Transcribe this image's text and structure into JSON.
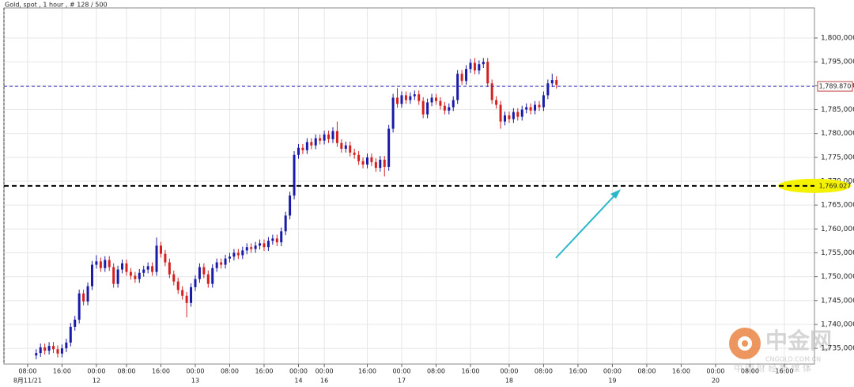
{
  "chart_data": {
    "type": "candlestick",
    "title": "Gold, spot , 1 hour , # 128 / 500",
    "up_color": "#1a1aa8",
    "down_color": "#d42020",
    "grid": true,
    "xlim": [
      -5.5,
      183
    ],
    "ylim": [
      1731.7,
      1806.3
    ],
    "yticks": [
      {
        "value": 1735,
        "label": "1,735,000"
      },
      {
        "value": 1740,
        "label": "1,740,000"
      },
      {
        "value": 1745,
        "label": "1,745,000"
      },
      {
        "value": 1750,
        "label": "1,750,000"
      },
      {
        "value": 1755,
        "label": "1,755,000"
      },
      {
        "value": 1760,
        "label": "1,760,000"
      },
      {
        "value": 1765,
        "label": "1,765,000"
      },
      {
        "value": 1770,
        "label": "1,770,000"
      },
      {
        "value": 1775,
        "label": "1,775,000"
      },
      {
        "value": 1780,
        "label": "1,780,000"
      },
      {
        "value": 1785,
        "label": "1,785,000"
      },
      {
        "value": 1790,
        "label": "1,790,000"
      },
      {
        "value": 1795,
        "label": "1,795,000"
      },
      {
        "value": 1800,
        "label": "1,800,000"
      }
    ],
    "xticks": [
      {
        "value": 0,
        "label": "08:00"
      },
      {
        "value": 8,
        "label": "16:00"
      },
      {
        "value": 16,
        "label": "00:00"
      },
      {
        "value": 23,
        "label": "08:00"
      },
      {
        "value": 31,
        "label": "16:00"
      },
      {
        "value": 39,
        "label": "00:00"
      },
      {
        "value": 47,
        "label": "08:00"
      },
      {
        "value": 55,
        "label": "16:00"
      },
      {
        "value": 63,
        "label": "00:00"
      },
      {
        "value": 69,
        "label": "00:00"
      },
      {
        "value": 79,
        "label": "16:00"
      },
      {
        "value": 87,
        "label": "00:00"
      },
      {
        "value": 95,
        "label": "08:00"
      },
      {
        "value": 103,
        "label": "16:00"
      },
      {
        "value": 112,
        "label": "00:00"
      },
      {
        "value": 120,
        "label": "08:00"
      },
      {
        "value": 128,
        "label": "16:00"
      },
      {
        "value": 136,
        "label": "00:00"
      },
      {
        "value": 144,
        "label": "08:00"
      },
      {
        "value": 152,
        "label": "16:00"
      },
      {
        "value": 160,
        "label": "00:00"
      },
      {
        "value": 168,
        "label": "08:00"
      },
      {
        "value": 176,
        "label": "16:00"
      }
    ],
    "date_labels": [
      {
        "value": 0,
        "label": "8月11/21"
      },
      {
        "value": 16,
        "label": "12"
      },
      {
        "value": 39,
        "label": "13"
      },
      {
        "value": 63,
        "label": "14"
      },
      {
        "value": 69,
        "label": "16"
      },
      {
        "value": 87,
        "label": "17"
      },
      {
        "value": 112,
        "label": "18"
      },
      {
        "value": 136,
        "label": "19"
      },
      {
        "value": 160,
        "label": "20"
      }
    ],
    "price_lines": [
      {
        "value": 1789.87,
        "label": "1,789.870",
        "color": "#3030c0",
        "highlight": false
      },
      {
        "value": 1769.027,
        "label": "1,769.027",
        "color": "#000000",
        "highlight": true
      }
    ],
    "candles": {
      "x": [
        2,
        3,
        4,
        5,
        6,
        7,
        8,
        9,
        10,
        11,
        12,
        13,
        14,
        15,
        16,
        17,
        18,
        19,
        20,
        21,
        22,
        23,
        24,
        25,
        26,
        27,
        28,
        29,
        30,
        31,
        32,
        33,
        34,
        35,
        36,
        37,
        38,
        39,
        40,
        41,
        42,
        43,
        44,
        45,
        46,
        47,
        48,
        49,
        50,
        51,
        52,
        53,
        54,
        55,
        56,
        57,
        58,
        59,
        60,
        61,
        62,
        63,
        64,
        65,
        66,
        67,
        68,
        69,
        70,
        71,
        72,
        73,
        74,
        75,
        76,
        77,
        78,
        79,
        80,
        81,
        82,
        83,
        84,
        85,
        86,
        87,
        88,
        89,
        90,
        91,
        92,
        93,
        94,
        95,
        96,
        97,
        98,
        99,
        100,
        101,
        102,
        103,
        104,
        105,
        106,
        107,
        108,
        109,
        110,
        111,
        112,
        113,
        114,
        115,
        116,
        117,
        118,
        119,
        120,
        121,
        122,
        123
      ],
      "open": [
        1733.5,
        1734.0,
        1735.2,
        1734.5,
        1735.5,
        1734.8,
        1733.9,
        1735.0,
        1736.2,
        1739.5,
        1741.0,
        1746.5,
        1744.8,
        1748.0,
        1752.5,
        1753.2,
        1751.8,
        1753.5,
        1752.0,
        1748.5,
        1751.5,
        1752.8,
        1751.0,
        1750.2,
        1749.5,
        1750.8,
        1751.5,
        1752.2,
        1751.0,
        1756.5,
        1754.8,
        1753.0,
        1750.5,
        1749.0,
        1747.2,
        1746.0,
        1744.5,
        1747.8,
        1749.5,
        1752.0,
        1750.5,
        1748.5,
        1751.8,
        1753.0,
        1752.5,
        1753.8,
        1754.2,
        1755.0,
        1754.5,
        1755.5,
        1756.2,
        1755.8,
        1756.5,
        1757.0,
        1756.2,
        1757.5,
        1758.0,
        1757.2,
        1759.5,
        1762.8,
        1767.0,
        1775.5,
        1777.0,
        1776.5,
        1778.2,
        1777.5,
        1779.0,
        1778.5,
        1779.8,
        1778.8,
        1780.5,
        1778.0,
        1776.8,
        1777.5,
        1776.0,
        1775.5,
        1774.2,
        1773.5,
        1775.0,
        1774.0,
        1772.8,
        1774.5,
        1773.0,
        1781.0,
        1787.5,
        1786.2,
        1788.0,
        1787.0,
        1787.8,
        1788.2,
        1786.8,
        1784.0,
        1786.5,
        1787.5,
        1786.8,
        1785.8,
        1784.8,
        1785.5,
        1787.0,
        1792.5,
        1791.0,
        1793.5,
        1794.8,
        1793.2,
        1794.5,
        1795.0,
        1790.5,
        1787.0,
        1786.0,
        1782.5,
        1783.8,
        1783.0,
        1784.5,
        1783.5,
        1785.0,
        1785.5,
        1784.8,
        1786.0,
        1785.5,
        1788.0,
        1790.5,
        1791.2
      ],
      "high": [
        1734.8,
        1736.0,
        1736.0,
        1736.3,
        1736.3,
        1735.6,
        1735.8,
        1737.0,
        1740.3,
        1741.8,
        1747.3,
        1747.3,
        1748.8,
        1753.3,
        1754.5,
        1754.0,
        1754.3,
        1754.3,
        1752.8,
        1752.3,
        1753.6,
        1753.6,
        1751.8,
        1751.0,
        1751.6,
        1752.3,
        1753.0,
        1753.0,
        1758.2,
        1757.3,
        1755.6,
        1753.8,
        1751.3,
        1749.8,
        1748.0,
        1746.8,
        1748.6,
        1750.3,
        1752.8,
        1752.8,
        1751.3,
        1752.6,
        1753.8,
        1753.8,
        1754.6,
        1755.0,
        1755.8,
        1755.8,
        1756.3,
        1757.0,
        1757.0,
        1757.3,
        1757.8,
        1757.8,
        1758.3,
        1758.8,
        1758.8,
        1760.3,
        1763.6,
        1767.8,
        1776.3,
        1777.8,
        1777.8,
        1779.0,
        1779.0,
        1779.8,
        1779.8,
        1780.6,
        1780.6,
        1781.3,
        1782.5,
        1778.8,
        1778.3,
        1778.3,
        1776.8,
        1776.3,
        1775.0,
        1775.8,
        1775.8,
        1774.8,
        1775.3,
        1775.3,
        1781.8,
        1788.3,
        1789.5,
        1788.8,
        1788.8,
        1788.6,
        1789.0,
        1789.0,
        1787.6,
        1787.3,
        1788.3,
        1788.3,
        1787.6,
        1786.6,
        1786.3,
        1787.8,
        1793.3,
        1793.3,
        1794.3,
        1795.6,
        1795.8,
        1795.3,
        1795.8,
        1795.8,
        1791.3,
        1787.8,
        1786.8,
        1784.6,
        1784.6,
        1785.3,
        1785.3,
        1785.8,
        1786.3,
        1786.3,
        1786.8,
        1786.8,
        1788.8,
        1791.3,
        1792.5,
        1792.0
      ],
      "low": [
        1732.7,
        1733.2,
        1733.7,
        1733.7,
        1734.0,
        1733.1,
        1733.1,
        1734.2,
        1735.4,
        1738.7,
        1740.2,
        1744.0,
        1744.0,
        1747.2,
        1751.7,
        1751.0,
        1751.0,
        1751.2,
        1747.7,
        1747.7,
        1750.7,
        1750.2,
        1749.4,
        1748.7,
        1748.7,
        1750.0,
        1750.7,
        1750.2,
        1750.2,
        1754.0,
        1752.2,
        1749.7,
        1748.2,
        1746.4,
        1745.2,
        1741.5,
        1743.7,
        1747.0,
        1748.7,
        1749.7,
        1747.7,
        1747.7,
        1751.0,
        1751.7,
        1751.7,
        1753.0,
        1753.4,
        1753.7,
        1753.7,
        1754.7,
        1755.0,
        1755.0,
        1755.7,
        1755.4,
        1755.4,
        1756.7,
        1756.4,
        1756.4,
        1758.7,
        1762.0,
        1766.2,
        1774.7,
        1775.7,
        1775.7,
        1776.7,
        1776.7,
        1777.7,
        1777.7,
        1778.0,
        1778.0,
        1777.2,
        1776.0,
        1776.0,
        1775.2,
        1774.7,
        1773.4,
        1772.7,
        1772.7,
        1773.2,
        1772.0,
        1772.0,
        1771.0,
        1772.2,
        1780.2,
        1785.4,
        1785.4,
        1786.2,
        1786.2,
        1787.0,
        1786.0,
        1783.2,
        1783.2,
        1785.7,
        1786.0,
        1785.0,
        1784.0,
        1784.0,
        1784.7,
        1786.2,
        1790.2,
        1790.2,
        1792.7,
        1792.4,
        1792.4,
        1793.7,
        1789.7,
        1786.2,
        1785.2,
        1781.0,
        1781.7,
        1782.2,
        1782.2,
        1782.7,
        1782.7,
        1784.2,
        1784.0,
        1784.0,
        1784.7,
        1784.7,
        1787.2,
        1789.7,
        1789.4
      ],
      "close": [
        1734.0,
        1735.2,
        1734.5,
        1735.5,
        1734.8,
        1733.9,
        1735.0,
        1736.2,
        1739.5,
        1741.0,
        1746.5,
        1744.8,
        1748.0,
        1752.5,
        1753.2,
        1751.8,
        1753.5,
        1752.0,
        1748.5,
        1751.5,
        1752.8,
        1751.0,
        1750.2,
        1749.5,
        1750.8,
        1751.5,
        1752.2,
        1751.0,
        1756.5,
        1754.8,
        1753.0,
        1750.5,
        1749.0,
        1747.2,
        1746.0,
        1744.5,
        1747.8,
        1749.5,
        1752.0,
        1750.5,
        1748.5,
        1751.8,
        1753.0,
        1752.5,
        1753.8,
        1754.2,
        1755.0,
        1754.5,
        1755.5,
        1756.2,
        1755.8,
        1756.5,
        1757.0,
        1756.2,
        1757.5,
        1758.0,
        1757.2,
        1759.5,
        1762.8,
        1767.0,
        1775.5,
        1777.0,
        1776.5,
        1778.2,
        1777.5,
        1779.0,
        1778.5,
        1779.8,
        1778.8,
        1780.5,
        1778.0,
        1776.8,
        1777.5,
        1776.0,
        1775.5,
        1774.2,
        1773.5,
        1775.0,
        1774.0,
        1772.8,
        1774.5,
        1773.0,
        1781.0,
        1787.5,
        1786.2,
        1788.0,
        1787.0,
        1787.8,
        1788.2,
        1786.8,
        1784.0,
        1786.5,
        1787.5,
        1786.8,
        1785.8,
        1784.8,
        1785.5,
        1787.0,
        1792.5,
        1791.0,
        1793.5,
        1794.8,
        1793.2,
        1794.5,
        1795.0,
        1790.5,
        1787.0,
        1786.0,
        1782.5,
        1783.8,
        1783.0,
        1784.5,
        1783.5,
        1785.0,
        1785.5,
        1784.8,
        1786.0,
        1785.5,
        1788.0,
        1790.5,
        1791.2,
        1790.2
      ]
    }
  },
  "watermark": {
    "brand": "中金网",
    "url": "CNGOLD.COM.CN",
    "tagline": "中 国 财 经 新 媒 体"
  }
}
